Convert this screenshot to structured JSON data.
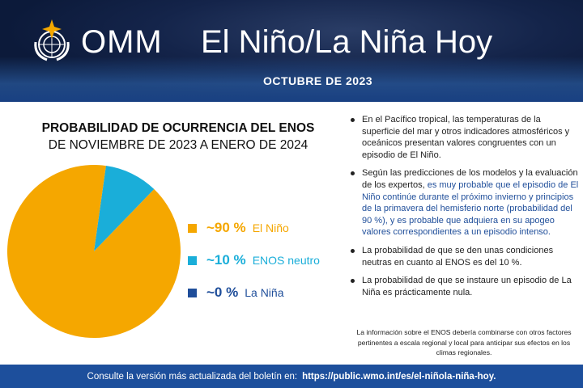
{
  "header": {
    "org": "OMM",
    "title": "El Niño/La Niña Hoy",
    "date": "OCTUBRE DE 2023",
    "logo_text": "OMM"
  },
  "chart_data": {
    "type": "pie",
    "title": "PROBABILIDAD DE OCURRENCIA DEL ENOS",
    "subtitle": "DE NOVIEMBRE DE 2023 A ENERO DE 2024",
    "slices": [
      {
        "name": "El Niño",
        "label": "~90 %",
        "value": 90,
        "color": "#F5A700"
      },
      {
        "name": "ENOS neutro",
        "label": "~10 %",
        "value": 10,
        "color": "#1AAED9"
      },
      {
        "name": "La Niña",
        "label": "~0 %",
        "value": 0,
        "color": "#1F4E9A"
      }
    ],
    "legend": "right"
  },
  "bullets": [
    {
      "text": "En el Pacífico tropical, las temperaturas de la superficie del mar y otros indicadores atmosféricos y oceánicos presentan valores congruentes con un episodio de El Niño."
    },
    {
      "text": "Según las predicciones de los modelos y la evaluación de los expertos, ",
      "highlight": "es muy probable que el episodio de El Niño continúe durante el próximo invierno y principios de la primavera del hemisferio norte (probabilidad del 90 %), y es probable que adquiera en su apogeo valores correspondientes a un episodio intenso."
    },
    {
      "text": "La probabilidad de que se den unas condiciones neutras en cuanto al ENOS es del 10 %."
    },
    {
      "text": "La probabilidad de que se instaure un episodio de La Niña es prácticamente nula."
    }
  ],
  "note": "La información sobre el ENOS debería combinarse con otros factores pertinentes a escala regional y local para anticipar sus efectos en los climas regionales.",
  "footer": {
    "text": "Consulte la versión más actualizada del boletín en:",
    "link": "https://public.wmo.int/es/el-niñola-niña-hoy."
  }
}
